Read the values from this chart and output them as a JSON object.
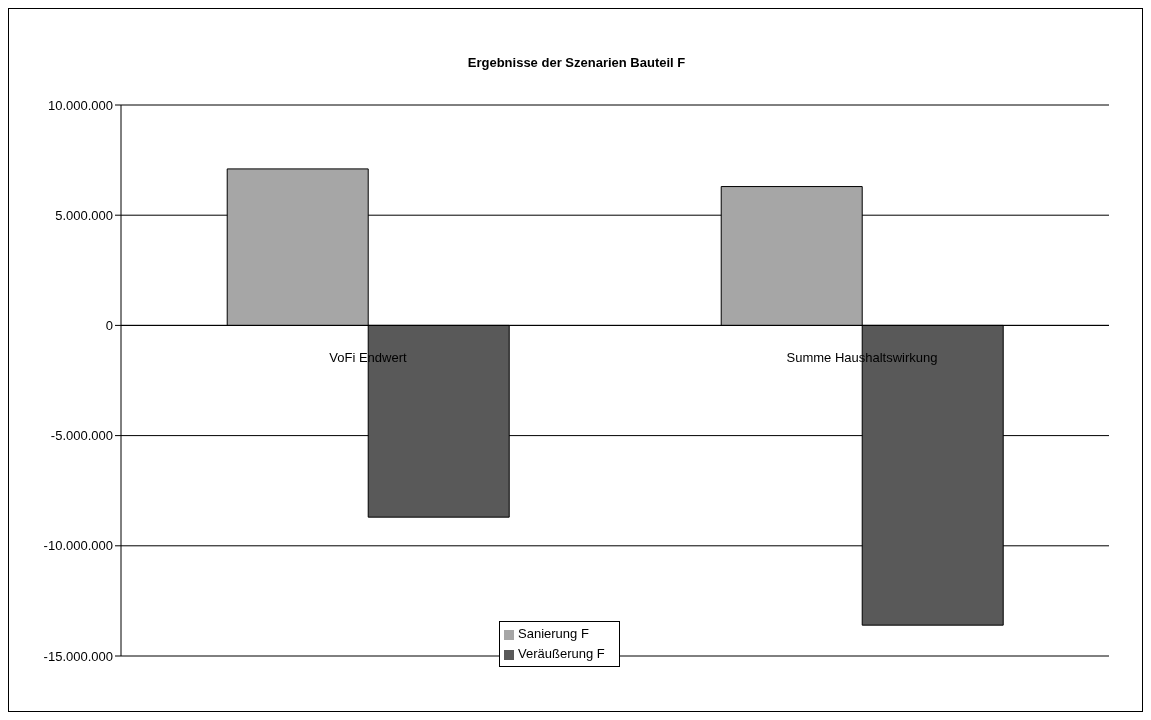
{
  "chart_data": {
    "type": "bar",
    "title": "Ergebnisse der Szenarien Bauteil F",
    "categories": [
      "VoFi Endwert",
      "Summe Haushaltswirkung"
    ],
    "series": [
      {
        "name": "Sanierung F",
        "color": "#a6a6a6",
        "values": [
          7100000,
          6300000
        ]
      },
      {
        "name": "Veräußerung F",
        "color": "#595959",
        "values": [
          -8700000,
          -13600000
        ]
      }
    ],
    "ylim": [
      -15000000,
      10000000
    ],
    "yticks": [
      {
        "value": -15000000,
        "label": "-15.000.000"
      },
      {
        "value": -10000000,
        "label": "-10.000.000"
      },
      {
        "value": -5000000,
        "label": "-5.000.000"
      },
      {
        "value": 0,
        "label": "0"
      },
      {
        "value": 5000000,
        "label": "5.000.000"
      },
      {
        "value": 10000000,
        "label": "10.000.000"
      }
    ],
    "grid": "y",
    "legend": "bottom"
  }
}
